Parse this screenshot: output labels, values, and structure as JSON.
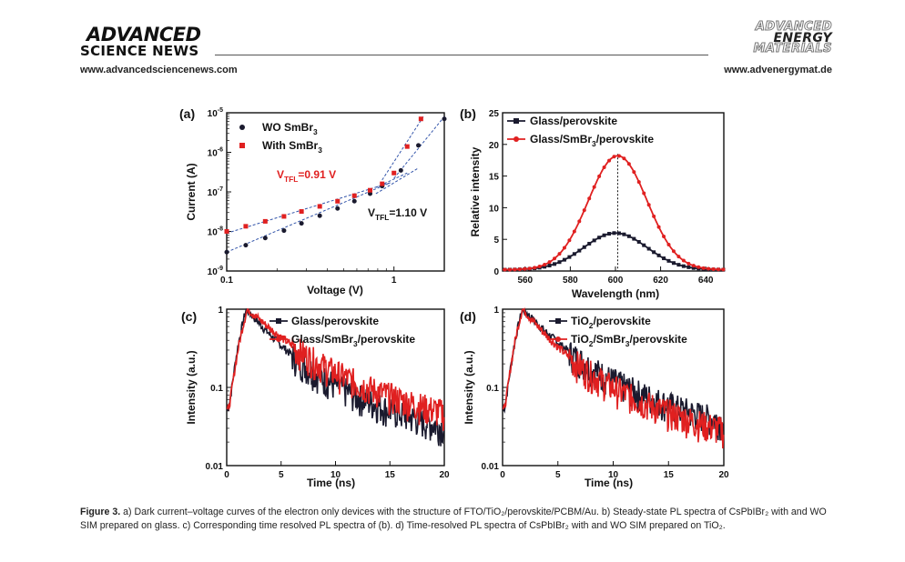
{
  "header": {
    "journal_left": "ADVANCED",
    "journal_left_sub": "SCIENCE NEWS",
    "url_left": "www.advancedsciencenews.com",
    "logo_right_lines": [
      "ADVANCED",
      "ENERGY",
      "MATERIALS"
    ],
    "url_right": "www.advenergymat.de"
  },
  "caption": {
    "label": "Figure 3.",
    "text": "a) Dark current–voltage curves of the electron only devices with the structure of FTO/TiO₂/perovskite/PCBM/Au. b) Steady-state PL spectra of CsPbIBr₂ with and WO SIM prepared on glass. c) Corresponding time resolved PL spectra of (b). d) Time-resolved PL spectra of CsPbIBr₂ with and WO SIM prepared on TiO₂."
  },
  "colors": {
    "black_series": "#1a1a2e",
    "red_series": "#e02020",
    "fit_line": "#3355aa"
  },
  "chart_data": [
    {
      "panel": "(a)",
      "type": "scatter",
      "xscale": "log",
      "yscale": "log",
      "xlabel": "Voltage (V)",
      "ylabel": "Current (A)",
      "xlim": [
        0.1,
        2
      ],
      "ylim": [
        1e-09,
        1e-05
      ],
      "x_ticks": [
        "0.1",
        "1"
      ],
      "y_ticks": [
        "10-9",
        "10-8",
        "10-7",
        "10-6",
        "10-5"
      ],
      "series": [
        {
          "name": "WO SmBr3",
          "label_main": "WO SmBr",
          "label_sub": "3",
          "color": "#1a1a2e",
          "marker": "circle",
          "x": [
            0.1,
            0.13,
            0.17,
            0.22,
            0.28,
            0.36,
            0.46,
            0.58,
            0.72,
            0.85,
            1.1,
            1.4,
            2.0
          ],
          "y": [
            3e-09,
            4.5e-09,
            6.8e-09,
            1.05e-08,
            1.6e-08,
            2.5e-08,
            3.8e-08,
            5.8e-08,
            9e-08,
            1.4e-07,
            3.5e-07,
            1.5e-06,
            7e-06
          ]
        },
        {
          "name": "With SmBr3",
          "label_main": "With SmBr",
          "label_sub": "3",
          "color": "#e02020",
          "marker": "square",
          "x": [
            0.1,
            0.13,
            0.17,
            0.22,
            0.28,
            0.36,
            0.46,
            0.58,
            0.72,
            0.85,
            1.0,
            1.2,
            1.45
          ],
          "y": [
            1e-08,
            1.35e-08,
            1.8e-08,
            2.4e-08,
            3.2e-08,
            4.3e-08,
            5.8e-08,
            8e-08,
            1.1e-07,
            1.6e-07,
            3e-07,
            1.4e-06,
            7e-06
          ]
        }
      ],
      "annotations": [
        {
          "main": "V",
          "sub": "TFL",
          "rest": "=0.91 V",
          "color": "#e02020"
        },
        {
          "main": "V",
          "sub": "TFL",
          "rest": "=1.10 V",
          "color": "#111111"
        }
      ]
    },
    {
      "panel": "(b)",
      "type": "line",
      "xlabel": "Wavelength (nm)",
      "ylabel": "Relative intensity",
      "xlim": [
        550,
        648
      ],
      "ylim": [
        0,
        25
      ],
      "x_ticks": [
        560,
        580,
        600,
        620,
        640
      ],
      "y_ticks": [
        0,
        5,
        10,
        15,
        20,
        25
      ],
      "peak_marker_x": 601,
      "series": [
        {
          "name": "Glass/perovskite",
          "color": "#1a1a2e",
          "marker": "square",
          "peak_x": 600,
          "peak_y": 5.8,
          "sigma": 14
        },
        {
          "name": "Glass/SmBr3/perovskite",
          "label_main": "Glass/SmBr",
          "label_sub": "3",
          "label_rest": "/perovskite",
          "color": "#e02020",
          "marker": "circle",
          "peak_x": 601,
          "peak_y": 18,
          "sigma": 13
        }
      ]
    },
    {
      "panel": "(c)",
      "type": "line",
      "yscale": "log",
      "xlabel": "Time (ns)",
      "ylabel": "Intensity (a.u.)",
      "xlim": [
        0,
        20
      ],
      "ylim": [
        0.01,
        1
      ],
      "x_ticks": [
        0,
        5,
        10,
        15,
        20
      ],
      "y_ticks": [
        "0.01",
        "0.1",
        "1"
      ],
      "series": [
        {
          "name": "Glass/perovskite",
          "color": "#1a1a2e",
          "peak_t": 1.8,
          "tau": 2.2,
          "floor": 0.012
        },
        {
          "name": "Glass/SmBr3/perovskite",
          "label_main": "Glass/SmBr",
          "label_sub": "3",
          "label_rest": "/perovskite",
          "color": "#e02020",
          "peak_t": 1.9,
          "tau": 2.8,
          "floor": 0.014
        }
      ]
    },
    {
      "panel": "(d)",
      "type": "line",
      "yscale": "log",
      "xlabel": "Time (ns)",
      "ylabel": "Intensity (a.u.)",
      "xlim": [
        0,
        20
      ],
      "ylim": [
        0.01,
        1
      ],
      "x_ticks": [
        0,
        5,
        10,
        15,
        20
      ],
      "y_ticks": [
        "0.01",
        "0.1",
        "1"
      ],
      "series": [
        {
          "name": "TiO2/perovskite",
          "label_main": "TiO",
          "label_sub": "2",
          "label_rest": "/perovskite",
          "color": "#1a1a2e",
          "peak_t": 1.8,
          "tau": 2.4,
          "floor": 0.013
        },
        {
          "name": "TiO2/SmBr3/perovskite",
          "label_main": "TiO",
          "label_sub": "2",
          "label_rest": "/SmBr",
          "label_sub2": "3",
          "label_rest2": "/perovskite",
          "color": "#e02020",
          "peak_t": 1.8,
          "tau": 2.1,
          "floor": 0.012
        }
      ]
    }
  ]
}
